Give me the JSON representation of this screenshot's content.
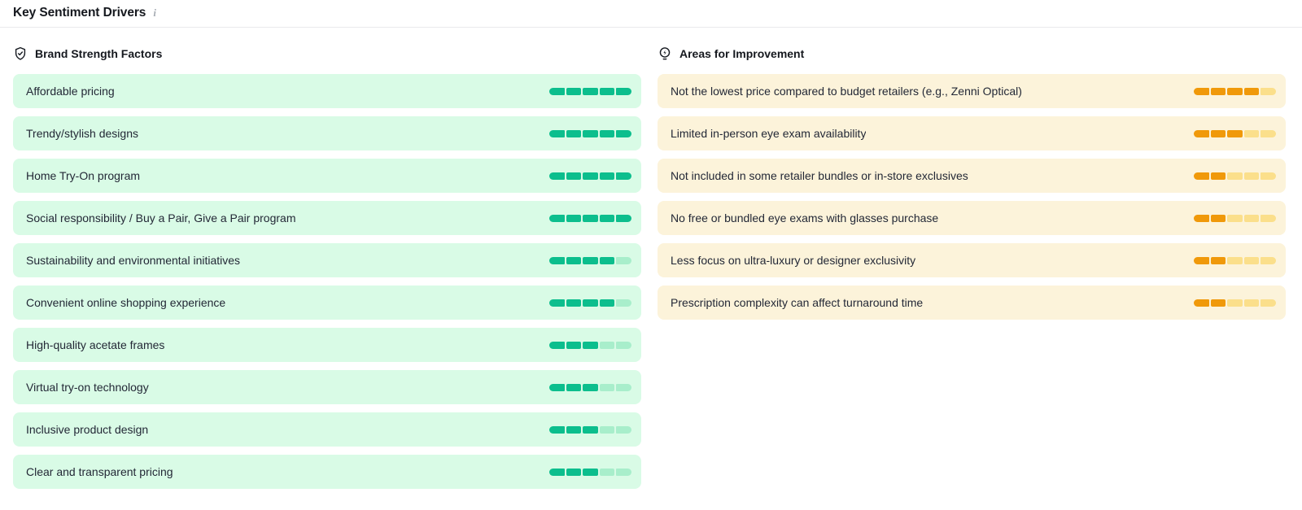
{
  "page": {
    "title": "Key Sentiment Drivers",
    "info_icon": "info-icon"
  },
  "columns": {
    "strengths": {
      "title": "Brand Strength Factors",
      "icon": "shield-check-icon",
      "theme": {
        "card_bg": "#d9fbe6",
        "bar_filled": "#0cbe8d",
        "bar_empty": "#a8eecb"
      },
      "items": [
        {
          "label": "Affordable pricing",
          "score": 5,
          "max": 5
        },
        {
          "label": "Trendy/stylish designs",
          "score": 5,
          "max": 5
        },
        {
          "label": "Home Try-On program",
          "score": 5,
          "max": 5
        },
        {
          "label": "Social responsibility / Buy a Pair, Give a Pair program",
          "score": 5,
          "max": 5
        },
        {
          "label": "Sustainability and environmental initiatives",
          "score": 4,
          "max": 5
        },
        {
          "label": "Convenient online shopping experience",
          "score": 4,
          "max": 5
        },
        {
          "label": "High-quality acetate frames",
          "score": 3,
          "max": 5
        },
        {
          "label": "Virtual try-on technology",
          "score": 3,
          "max": 5
        },
        {
          "label": "Inclusive product design",
          "score": 3,
          "max": 5
        },
        {
          "label": "Clear and transparent pricing",
          "score": 3,
          "max": 5
        }
      ]
    },
    "improvements": {
      "title": "Areas for Improvement",
      "icon": "lightbulb-bolt-icon",
      "theme": {
        "card_bg": "#fcf3da",
        "bar_filled": "#f0990a",
        "bar_empty": "#fbdf8b"
      },
      "items": [
        {
          "label": "Not the lowest price compared to budget retailers (e.g., Zenni Optical)",
          "score": 4,
          "max": 5
        },
        {
          "label": "Limited in-person eye exam availability",
          "score": 3,
          "max": 5
        },
        {
          "label": "Not included in some retailer bundles or in-store exclusives",
          "score": 2,
          "max": 5
        },
        {
          "label": "No free or bundled eye exams with glasses purchase",
          "score": 2,
          "max": 5
        },
        {
          "label": "Less focus on ultra-luxury or designer exclusivity",
          "score": 2,
          "max": 5
        },
        {
          "label": "Prescription complexity can affect turnaround time",
          "score": 2,
          "max": 5
        }
      ]
    }
  }
}
